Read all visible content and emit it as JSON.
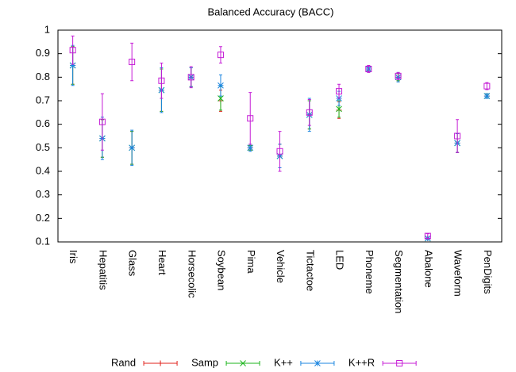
{
  "chart_data": {
    "type": "errorbar",
    "title": "Balanced Accuracy (BACC)",
    "categories": [
      "Iris",
      "Hepatitis",
      "Glass",
      "Heart",
      "Horsecolic",
      "Soybean",
      "Pima",
      "Vehicle",
      "Tictactoe",
      "LED",
      "Phoneme",
      "Segmentation",
      "Abalone",
      "Waveform",
      "PenDigits"
    ],
    "ylim": [
      0.1,
      1
    ],
    "yticks": [
      0.1,
      0.2,
      0.3,
      0.4,
      0.5,
      0.6,
      0.7,
      0.8,
      0.9,
      1
    ],
    "grid": false,
    "legend": "bottom",
    "series": [
      {
        "name": "Rand",
        "color": "#e0201b",
        "marker": "plus",
        "values": [
          0.85,
          0.54,
          0.5,
          0.745,
          0.8,
          0.7,
          0.5,
          0.465,
          0.64,
          0.66,
          0.835,
          0.8,
          0.115,
          0.52,
          0.72
        ],
        "errors": [
          0.08,
          0.08,
          0.07,
          0.09,
          0.04,
          0.045,
          0.01,
          0.05,
          0.06,
          0.035,
          0.01,
          0.015,
          0.005,
          0.04,
          0.01
        ]
      },
      {
        "name": "Samp",
        "color": "#1cb51c",
        "marker": "cross",
        "values": [
          0.85,
          0.54,
          0.5,
          0.745,
          0.8,
          0.71,
          0.5,
          0.465,
          0.64,
          0.665,
          0.835,
          0.8,
          0.115,
          0.52,
          0.72
        ],
        "errors": [
          0.08,
          0.08,
          0.07,
          0.09,
          0.04,
          0.05,
          0.01,
          0.05,
          0.06,
          0.035,
          0.01,
          0.015,
          0.005,
          0.04,
          0.01
        ]
      },
      {
        "name": "K++",
        "color": "#1c86e0",
        "marker": "star",
        "values": [
          0.85,
          0.54,
          0.5,
          0.745,
          0.8,
          0.765,
          0.5,
          0.465,
          0.64,
          0.71,
          0.835,
          0.8,
          0.115,
          0.52,
          0.72
        ],
        "errors": [
          0.085,
          0.09,
          0.075,
          0.095,
          0.04,
          0.045,
          0.015,
          0.05,
          0.07,
          0.03,
          0.01,
          0.02,
          0.005,
          0.04,
          0.01
        ]
      },
      {
        "name": "K++R",
        "color": "#c51cd6",
        "marker": "square",
        "values": [
          0.915,
          0.61,
          0.865,
          0.785,
          0.8,
          0.895,
          0.625,
          0.485,
          0.65,
          0.74,
          0.835,
          0.805,
          0.125,
          0.55,
          0.762
        ],
        "errors": [
          0.06,
          0.12,
          0.08,
          0.075,
          0.045,
          0.035,
          0.11,
          0.085,
          0.055,
          0.03,
          0.015,
          0.015,
          0.01,
          0.07,
          0.015
        ]
      }
    ]
  }
}
